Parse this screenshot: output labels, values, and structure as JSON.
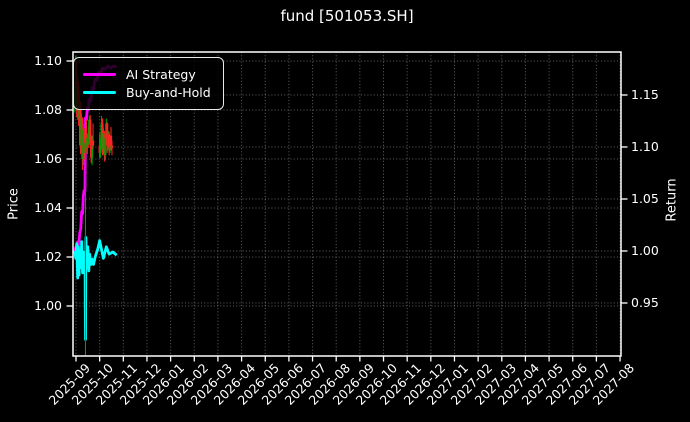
{
  "title": "fund [501053.SH]",
  "legend": {
    "items": [
      {
        "label": "AI Strategy",
        "color": "#ff00ff"
      },
      {
        "label": "Buy-and-Hold",
        "color": "#00ffff"
      }
    ]
  },
  "chart_data": {
    "type": "mixed",
    "title": "fund [501053.SH]",
    "background": "#000000",
    "grid": true,
    "grid_color": "#ffffff",
    "grid_opacity": 0.38,
    "spine_color": "#ffffff",
    "legend_position": "upper-left",
    "x_axis": {
      "tick_labels": [
        "2025-09",
        "2025-10",
        "2025-11",
        "2025-12",
        "2026-01",
        "2026-02",
        "2026-03",
        "2026-04",
        "2026-05",
        "2026-06",
        "2026-07",
        "2026-08",
        "2026-09",
        "2026-10",
        "2026-11",
        "2026-12",
        "2027-01",
        "2027-02",
        "2027-03",
        "2027-04",
        "2027-05",
        "2027-06",
        "2027-07",
        "2027-08"
      ],
      "rotation": 45,
      "xlim_months": [
        -0.127,
        23.04
      ]
    },
    "left_axis": {
      "label": "Price",
      "tick_labels": [
        "1.00",
        "1.02",
        "1.04",
        "1.06",
        "1.08",
        "1.10"
      ],
      "tick_values": [
        1.0,
        1.02,
        1.04,
        1.06,
        1.08,
        1.1
      ],
      "ylim": [
        0.97959,
        1.10367
      ]
    },
    "right_axis": {
      "label": "Return",
      "tick_labels": [
        "0.95",
        "1.00",
        "1.05",
        "1.10",
        "1.15"
      ],
      "tick_values": [
        0.95,
        1.0,
        1.05,
        1.1,
        1.15
      ],
      "ylim": [
        0.89903,
        1.19134
      ]
    },
    "series": [
      {
        "name": "AI Strategy",
        "type": "line",
        "axis": "right",
        "color": "#ff00ff",
        "width": 2.8,
        "points": [
          [
            -0.05,
            1.0
          ],
          [
            0.0,
            1.004
          ],
          [
            0.04,
            0.997
          ],
          [
            0.08,
            1.009
          ],
          [
            0.12,
            1.006
          ],
          [
            0.16,
            1.018
          ],
          [
            0.2,
            1.021
          ],
          [
            0.24,
            1.038
          ],
          [
            0.28,
            1.036
          ],
          [
            0.31,
            1.052
          ],
          [
            0.34,
            1.058
          ],
          [
            0.38,
            1.058
          ],
          [
            0.4,
            1.128
          ],
          [
            0.44,
            1.126
          ],
          [
            0.48,
            1.138
          ],
          [
            0.52,
            1.136
          ],
          [
            0.56,
            1.146
          ],
          [
            0.62,
            1.144
          ],
          [
            0.68,
            1.157
          ],
          [
            0.74,
            1.155
          ],
          [
            0.8,
            1.165
          ],
          [
            0.88,
            1.164
          ],
          [
            0.96,
            1.172
          ],
          [
            1.04,
            1.17
          ],
          [
            1.12,
            1.176
          ],
          [
            1.24,
            1.175
          ],
          [
            1.36,
            1.178
          ],
          [
            1.48,
            1.176
          ],
          [
            1.6,
            1.178
          ],
          [
            1.72,
            1.177
          ]
        ]
      },
      {
        "name": "Buy-and-Hold",
        "type": "line",
        "axis": "right",
        "color": "#00ffff",
        "width": 2.8,
        "points": [
          [
            -0.05,
            1.0
          ],
          [
            -0.01,
            0.993
          ],
          [
            0.03,
            1.007
          ],
          [
            0.07,
            0.974
          ],
          [
            0.1,
            1.004
          ],
          [
            0.13,
            0.977
          ],
          [
            0.16,
            1.001
          ],
          [
            0.2,
            0.984
          ],
          [
            0.24,
            1.009
          ],
          [
            0.28,
            0.979
          ],
          [
            0.31,
            0.999
          ],
          [
            0.35,
            0.989
          ],
          [
            0.38,
            0.997
          ],
          [
            0.4,
            0.915
          ],
          [
            0.42,
            1.013
          ],
          [
            0.46,
            0.984
          ],
          [
            0.5,
            1.004
          ],
          [
            0.54,
            0.981
          ],
          [
            0.58,
            0.997
          ],
          [
            0.63,
            0.987
          ],
          [
            0.68,
            0.992
          ],
          [
            0.74,
            0.987
          ],
          [
            0.82,
            0.995
          ],
          [
            0.92,
            1.002
          ],
          [
            1.0,
            1.01
          ],
          [
            1.08,
            1.001
          ],
          [
            1.16,
            0.993
          ],
          [
            1.28,
            1.004
          ],
          [
            1.4,
            0.997
          ],
          [
            1.56,
            0.999
          ],
          [
            1.72,
            0.996
          ]
        ]
      },
      {
        "name": "fund-price-candles",
        "type": "candlestick",
        "axis": "left",
        "up_color": "#00a000",
        "down_color": "#ff2222",
        "candles": [
          [
            -0.05,
            1.083,
            1.0875,
            1.079,
            1.0865
          ],
          [
            -0.01,
            1.0865,
            1.102,
            1.082,
            1.092
          ],
          [
            0.03,
            1.092,
            1.1,
            1.077,
            1.081
          ],
          [
            0.07,
            1.081,
            1.094,
            1.076,
            1.09
          ],
          [
            0.11,
            1.09,
            1.0915,
            1.0735,
            1.0765
          ],
          [
            0.15,
            1.0765,
            1.086,
            1.0655,
            1.083
          ],
          [
            0.19,
            1.083,
            1.0835,
            1.062,
            1.0655
          ],
          [
            0.23,
            1.0655,
            1.0785,
            1.0625,
            1.0765
          ],
          [
            0.27,
            1.0765,
            1.077,
            1.0555,
            1.06
          ],
          [
            0.31,
            1.06,
            1.0745,
            1.0575,
            1.072
          ],
          [
            0.35,
            1.072,
            1.0725,
            1.0595,
            1.0625
          ],
          [
            0.4,
            1.0625,
            1.0685,
            0.979,
            1.0665
          ],
          [
            0.44,
            1.07,
            1.076,
            1.0625,
            1.0645
          ],
          [
            0.48,
            1.0645,
            1.0705,
            1.062,
            1.0685
          ],
          [
            0.52,
            1.0685,
            1.0735,
            1.0645,
            1.066
          ],
          [
            0.56,
            1.066,
            1.0775,
            1.0655,
            1.076
          ],
          [
            0.6,
            1.076,
            1.078,
            1.0665,
            1.0685
          ],
          [
            0.64,
            1.0685,
            1.07,
            1.0585,
            1.0605
          ],
          [
            0.68,
            1.0605,
            1.0695,
            1.0575,
            1.0675
          ],
          [
            0.72,
            1.0675,
            1.0745,
            1.064,
            1.0655
          ],
          [
            1.0,
            1.0655,
            1.0705,
            1.0605,
            1.0625
          ],
          [
            1.04,
            1.0625,
            1.0685,
            1.0605,
            1.0665
          ],
          [
            1.08,
            1.0665,
            1.0775,
            1.0645,
            1.0745
          ],
          [
            1.12,
            1.0745,
            1.0765,
            1.0615,
            1.064
          ],
          [
            1.16,
            1.064,
            1.0725,
            1.062,
            1.0705
          ],
          [
            1.2,
            1.0705,
            1.0715,
            1.059,
            1.0615
          ],
          [
            1.24,
            1.0615,
            1.0705,
            1.0595,
            1.0685
          ],
          [
            1.28,
            1.0685,
            1.0765,
            1.066,
            1.0745
          ],
          [
            1.32,
            1.0745,
            1.075,
            1.0625,
            1.0655
          ],
          [
            1.36,
            1.0655,
            1.0715,
            1.0635,
            1.07
          ],
          [
            1.4,
            1.07,
            1.0712,
            1.0615,
            1.0645
          ],
          [
            1.44,
            1.0645,
            1.0685,
            1.0625,
            1.0665
          ],
          [
            1.48,
            1.0695,
            1.073,
            1.0635,
            1.0655
          ],
          [
            1.52,
            1.0655,
            1.0675,
            1.0615,
            1.0645
          ]
        ]
      }
    ]
  }
}
